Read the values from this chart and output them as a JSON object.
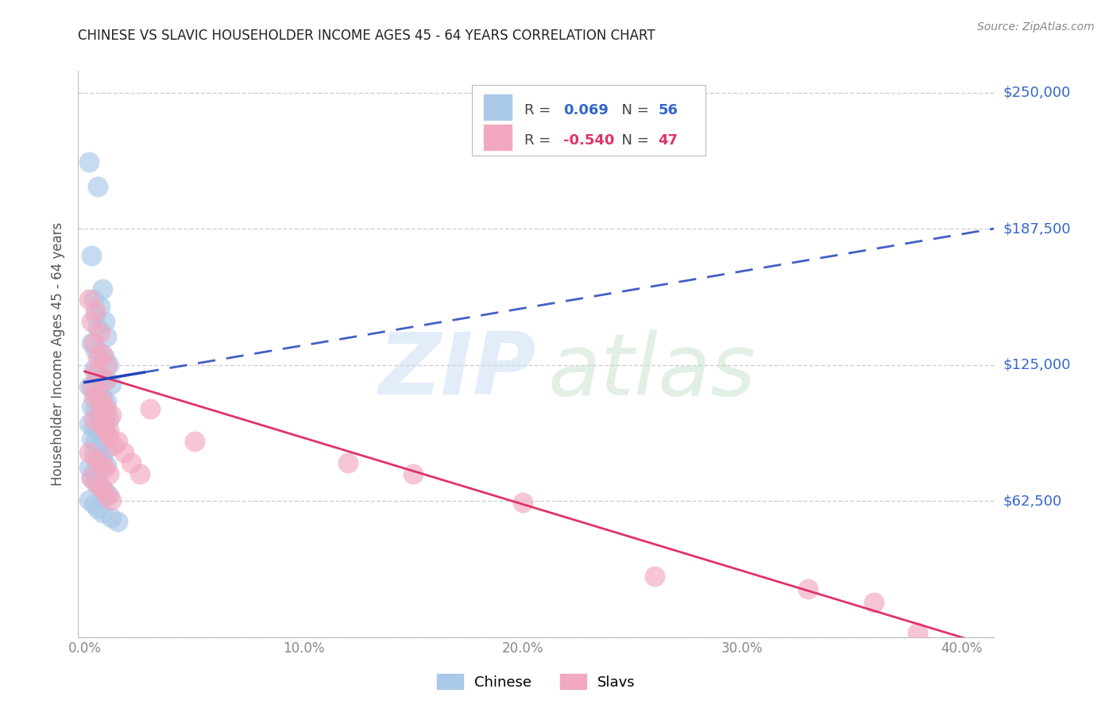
{
  "title": "CHINESE VS SLAVIC HOUSEHOLDER INCOME AGES 45 - 64 YEARS CORRELATION CHART",
  "source": "Source: ZipAtlas.com",
  "xlabel_ticks": [
    "0.0%",
    "10.0%",
    "20.0%",
    "30.0%",
    "40.0%"
  ],
  "xlabel_tick_vals": [
    0.0,
    0.1,
    0.2,
    0.3,
    0.4
  ],
  "ylabel_right_labels": [
    "$250,000",
    "$187,500",
    "$125,000",
    "$62,500"
  ],
  "ylabel_right_vals": [
    250000,
    187500,
    125000,
    62500
  ],
  "ylim": [
    0,
    260000
  ],
  "xlim": [
    -0.003,
    0.415
  ],
  "legend_r1": "0.069",
  "legend_n1": "56",
  "legend_r2": "-0.540",
  "legend_n2": "47",
  "blue_scatter": "#aac8e8",
  "pink_scatter": "#f2a8c0",
  "blue_line": "#2244bb",
  "pink_line": "#e03366",
  "ylabel": "Householder Income Ages 45 - 64 years",
  "legend_label1": "Chinese",
  "legend_label2": "Slavs",
  "title_color": "#222222",
  "axis_color": "#888888",
  "grid_color": "#cccccc",
  "right_label_color": "#3366cc",
  "source_color": "#888888",
  "chinese_x": [
    0.002,
    0.006,
    0.003,
    0.008,
    0.004,
    0.007,
    0.005,
    0.009,
    0.006,
    0.01,
    0.003,
    0.005,
    0.007,
    0.009,
    0.011,
    0.004,
    0.006,
    0.008,
    0.01,
    0.012,
    0.002,
    0.004,
    0.006,
    0.008,
    0.01,
    0.003,
    0.005,
    0.007,
    0.009,
    0.011,
    0.002,
    0.004,
    0.006,
    0.008,
    0.003,
    0.005,
    0.007,
    0.009,
    0.004,
    0.006,
    0.008,
    0.01,
    0.002,
    0.004,
    0.006,
    0.003,
    0.005,
    0.007,
    0.009,
    0.011,
    0.002,
    0.004,
    0.006,
    0.008,
    0.012,
    0.015
  ],
  "chinese_y": [
    218000,
    207000,
    175000,
    160000,
    155000,
    152000,
    148000,
    145000,
    142000,
    138000,
    135000,
    132000,
    130000,
    128000,
    125000,
    123000,
    121000,
    119000,
    118000,
    116000,
    115000,
    113000,
    111000,
    110000,
    108000,
    106000,
    105000,
    103000,
    101000,
    100000,
    98000,
    96000,
    95000,
    93000,
    91000,
    90000,
    88000,
    86000,
    85000,
    83000,
    81000,
    79000,
    78000,
    76000,
    74000,
    73000,
    71000,
    69000,
    67000,
    65000,
    63000,
    61000,
    59000,
    57000,
    55000,
    53000
  ],
  "slavic_x": [
    0.002,
    0.005,
    0.003,
    0.007,
    0.004,
    0.008,
    0.006,
    0.01,
    0.005,
    0.009,
    0.003,
    0.006,
    0.008,
    0.01,
    0.012,
    0.004,
    0.007,
    0.009,
    0.011,
    0.013,
    0.002,
    0.005,
    0.007,
    0.009,
    0.011,
    0.003,
    0.006,
    0.008,
    0.01,
    0.012,
    0.004,
    0.007,
    0.009,
    0.011,
    0.015,
    0.018,
    0.021,
    0.025,
    0.03,
    0.05,
    0.2,
    0.26,
    0.33,
    0.36,
    0.38,
    0.15,
    0.12
  ],
  "slavic_y": [
    155000,
    150000,
    145000,
    140000,
    135000,
    130000,
    128000,
    125000,
    122000,
    118000,
    115000,
    112000,
    108000,
    105000,
    102000,
    100000,
    98000,
    95000,
    92000,
    88000,
    85000,
    82000,
    80000,
    78000,
    75000,
    73000,
    70000,
    68000,
    65000,
    63000,
    110000,
    105000,
    100000,
    95000,
    90000,
    85000,
    80000,
    75000,
    105000,
    90000,
    62000,
    28000,
    22000,
    16000,
    2000,
    75000,
    80000
  ]
}
